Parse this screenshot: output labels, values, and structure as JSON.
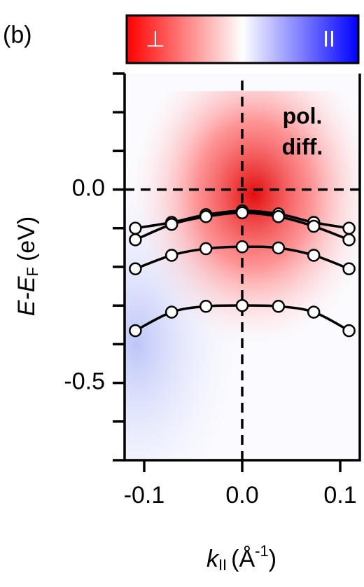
{
  "chart_data": {
    "type": "line",
    "panel_label": "(b)",
    "annotation": [
      "pol.",
      "diff."
    ],
    "colorbar": {
      "low_label": "⊥",
      "high_label": "II",
      "colors": [
        "#ff0000",
        "#ffffff",
        "#0000ff"
      ]
    },
    "xlabel": {
      "main": "k",
      "sub": "II",
      "unit": "(Å",
      "sup": "-1",
      "close": ")"
    },
    "ylabel": {
      "main": "E-E",
      "sub": "F",
      "unit": "(eV)"
    },
    "x": [
      -0.109,
      -0.072,
      -0.037,
      0,
      0.037,
      0.073,
      0.109
    ],
    "series": [
      {
        "color": "#000000",
        "values": [
          -0.1,
          -0.085,
          -0.065,
          -0.055,
          -0.063,
          -0.085,
          -0.1
        ]
      },
      {
        "color": "#000000",
        "values": [
          -0.13,
          -0.09,
          -0.07,
          -0.06,
          -0.07,
          -0.095,
          -0.13
        ]
      },
      {
        "color": "#000000",
        "values": [
          -0.205,
          -0.17,
          -0.153,
          -0.148,
          -0.151,
          -0.17,
          -0.205
        ]
      },
      {
        "color": "#000000",
        "values": [
          -0.365,
          -0.317,
          -0.302,
          -0.3,
          -0.302,
          -0.317,
          -0.365
        ]
      }
    ],
    "marker_fill": "#ffffff",
    "xlim": [
      -0.12,
      0.12
    ],
    "ylim": [
      -0.7,
      0.3
    ],
    "xticks": [
      {
        "value": -0.1,
        "label": "-0.1"
      },
      {
        "value": 0,
        "label": "0.0"
      },
      {
        "value": 0.1,
        "label": "0.1"
      }
    ],
    "yticks": [
      -0.5,
      {
        "value": 0,
        "label": "0.0"
      }
    ],
    "yminorticks": [
      -0.7,
      -0.6,
      -0.4,
      -0.3,
      -0.2,
      -0.1,
      0.1,
      0.2,
      0.3
    ],
    "vline": 0,
    "hline": 0
  }
}
